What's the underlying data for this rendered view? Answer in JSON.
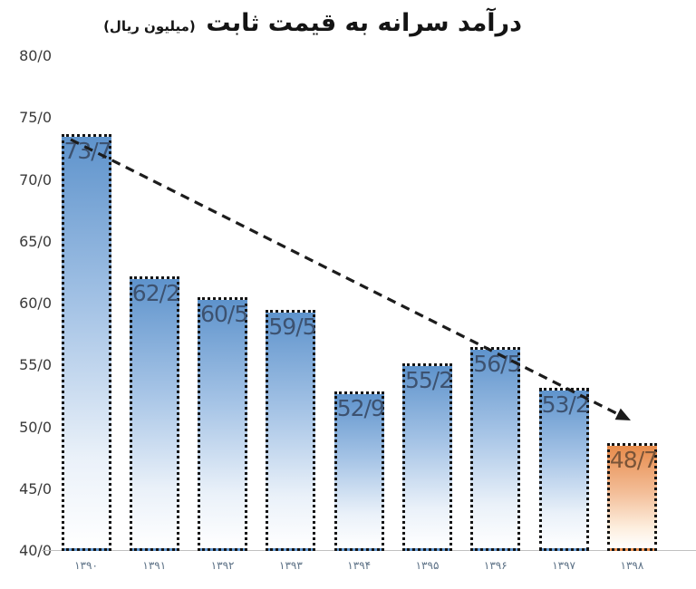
{
  "chart_data": {
    "type": "bar",
    "title": "درآمد سرانه به قیمت ثابت",
    "title_unit": "(میلیون ریال)",
    "categories": [
      "۱۳۹۰",
      "۱۳۹۱",
      "۱۳۹۲",
      "۱۳۹۳",
      "۱۳۹۴",
      "۱۳۹۵",
      "۱۳۹۶",
      "۱۳۹۷",
      "۱۳۹۸"
    ],
    "values": [
      73.7,
      62.2,
      60.5,
      59.5,
      52.9,
      55.2,
      56.5,
      53.2,
      48.7
    ],
    "bar_labels": [
      "73/7",
      "62/2",
      "60/5",
      "59/5",
      "52/9",
      "55/2",
      "56/5",
      "53/2",
      "48/7"
    ],
    "y_ticks": [
      "80/0",
      "75/0",
      "70/0",
      "65/0",
      "60/0",
      "55/0",
      "50/0",
      "45/0",
      "40/0"
    ],
    "y_tick_values": [
      80,
      75,
      70,
      65,
      60,
      55,
      50,
      45,
      40
    ],
    "ylim": [
      40,
      80
    ],
    "xlabel": "",
    "ylabel": "",
    "grid": false,
    "legend": "none",
    "highlight_index": 8,
    "annotation": "dashed downward trend arrow from first bar to last bar",
    "colors": {
      "bar_top": "#5e93cc",
      "bar_mid": "#a6c4e6",
      "bar_bottom": "#ffffff",
      "highlight_top": "#e78b4b",
      "highlight_mid": "#f3bd97",
      "bar_border": "#141414",
      "value_label": "#3d5270",
      "highlight_value_label": "#7a5438",
      "axis_line": "#c0c0c0",
      "y_tick_color": "#3a3a3a",
      "x_tick_color": "#5c7186",
      "title_color": "#141414",
      "arrow": "#1c1c1c"
    }
  }
}
